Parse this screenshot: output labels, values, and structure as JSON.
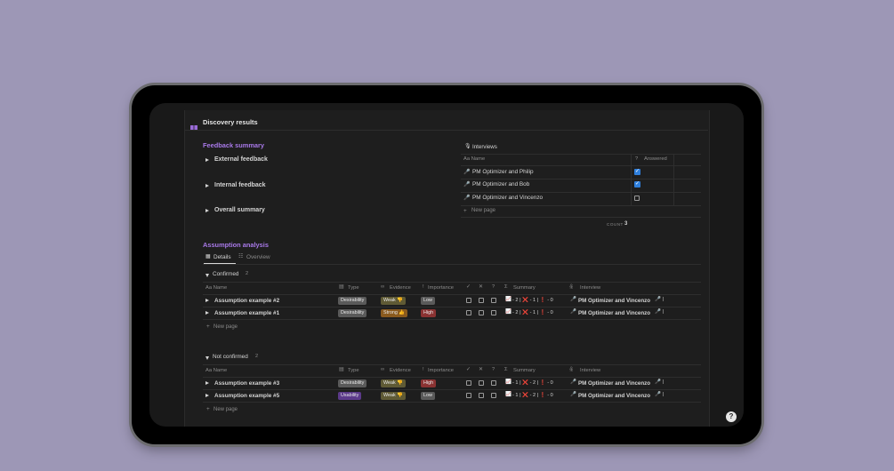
{
  "page": {
    "title": "Discovery results"
  },
  "feedback": {
    "title": "Feedback summary",
    "toggles": [
      "External feedback",
      "Internal feedback",
      "Overall summary"
    ]
  },
  "interviews": {
    "title": "Interviews",
    "col_name": "Aa Name",
    "col_answered": "Answered",
    "rows": [
      {
        "name": "PM Optimizer and Philip",
        "answered": true
      },
      {
        "name": "PM Optimizer and Bob",
        "answered": true
      },
      {
        "name": "PM Optimizer and Vincenzo",
        "answered": false
      }
    ],
    "new_page": "New page",
    "count_label": "COUNT",
    "count_value": "3"
  },
  "assumptions": {
    "title": "Assumption analysis",
    "tabs": [
      "Details",
      "Overview"
    ],
    "columns": {
      "name": "Aa Name",
      "type": "Type",
      "evidence": "Evidence",
      "importance": "Importance",
      "summary": "Summary",
      "interview": "Interview"
    },
    "groups": [
      {
        "label": "Confirmed",
        "count": "2",
        "rows": [
          {
            "name": "Assumption example #2",
            "type": "Desirability",
            "evidence": "Weak 👎",
            "importance": "Low",
            "summary": "- 2 | ❌ - 1 | ❗ - 0",
            "interview": "PM Optimizer and Vincenzo"
          },
          {
            "name": "Assumption example #1",
            "type": "Desirability",
            "evidence": "Strong 👍",
            "importance": "High",
            "summary": "- 2 | ❌ - 1 | ❗ - 0",
            "interview": "PM Optimizer and Vincenzo"
          }
        ],
        "new_page": "New page"
      },
      {
        "label": "Not confirmed",
        "count": "2",
        "rows": [
          {
            "name": "Assumption example #3",
            "type": "Desirability",
            "evidence": "Weak 👎",
            "importance": "High",
            "summary": "- 1 | ❌ - 2 | ❗ - 0",
            "interview": "PM Optimizer and Vincenzo"
          },
          {
            "name": "Assumption example #5",
            "type": "Usability",
            "evidence": "Weak 👎",
            "importance": "Low",
            "summary": "- 1 | ❌ - 2 | ❗ - 0",
            "interview": "PM Optimizer and Vincenzo"
          }
        ],
        "new_page": "New page"
      }
    ]
  },
  "colors": {
    "background": "#9d97b6",
    "accent": "#a879e8",
    "checkbox": "#2f7fdc",
    "tag_gray": "#5a5a5a",
    "tag_purple": "#5c3a8a",
    "tag_orange": "#8a5a1e",
    "tag_red": "#8a3232",
    "tag_olive": "#5f5a35"
  }
}
